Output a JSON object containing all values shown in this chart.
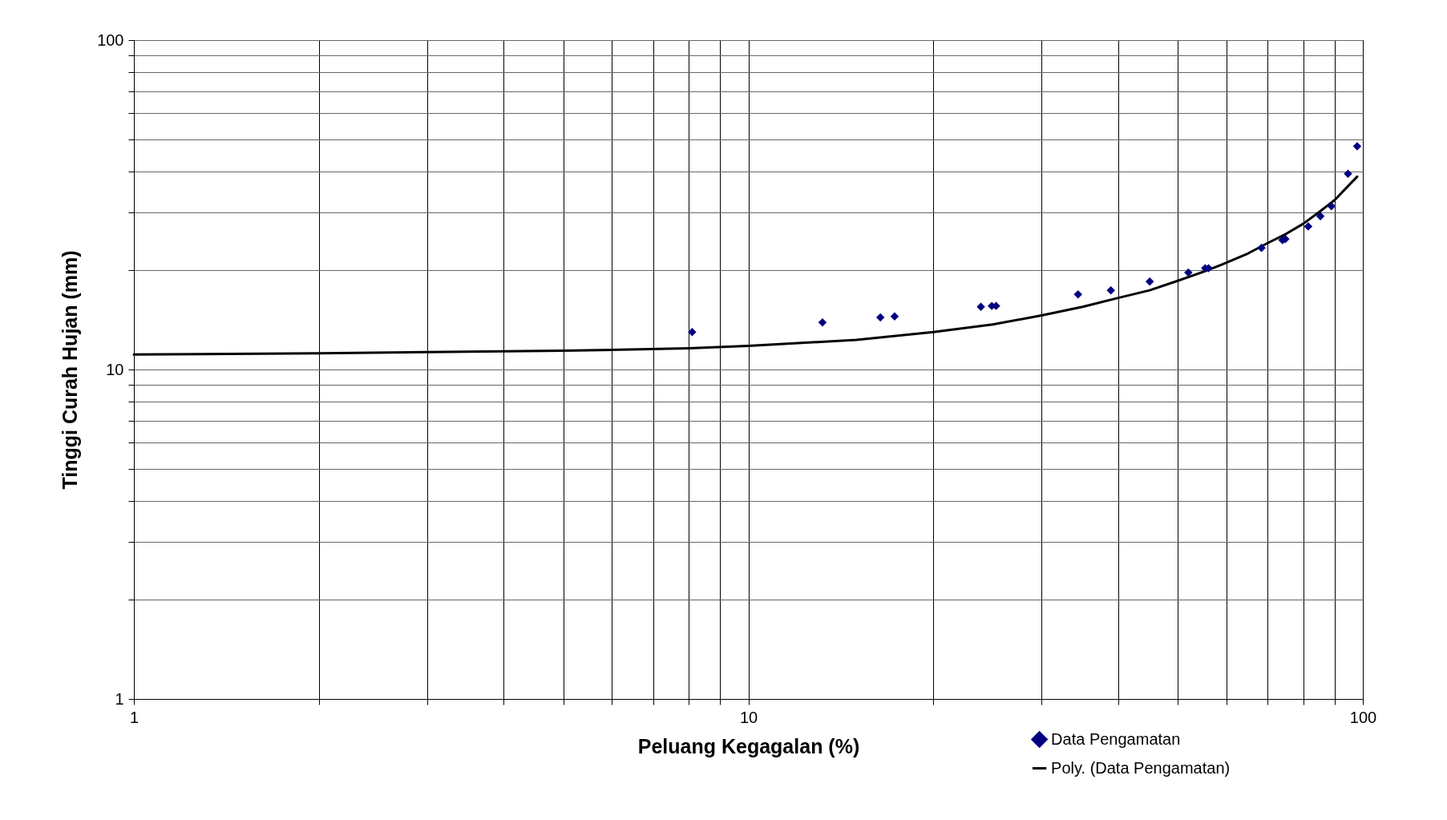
{
  "chart_data": {
    "type": "scatter",
    "xlabel": "Peluang Kegagalan (%)",
    "ylabel": "Tinggi Curah Hujan (mm)",
    "log": "xy",
    "grid": true,
    "legend": "bottom right",
    "xlim": [
      1,
      100
    ],
    "ylim": [
      1,
      100
    ],
    "xticks": [
      1,
      {
        "value": 2,
        "label": null
      },
      {
        "value": 3,
        "label": null
      },
      {
        "value": 4,
        "label": null
      },
      {
        "value": 5,
        "label": null
      },
      {
        "value": 6,
        "label": null
      },
      {
        "value": 7,
        "label": null
      },
      {
        "value": 8,
        "label": null
      },
      {
        "value": 9,
        "label": null
      },
      10,
      {
        "value": 20,
        "label": null
      },
      {
        "value": 30,
        "label": null
      },
      {
        "value": 40,
        "label": null
      },
      {
        "value": 50,
        "label": null
      },
      {
        "value": 60,
        "label": null
      },
      {
        "value": 70,
        "label": null
      },
      {
        "value": 80,
        "label": null
      },
      {
        "value": 90,
        "label": null
      },
      100
    ],
    "yticks": [
      1,
      {
        "value": 2,
        "label": null
      },
      {
        "value": 3,
        "label": null
      },
      {
        "value": 4,
        "label": null
      },
      {
        "value": 5,
        "label": null
      },
      {
        "value": 6,
        "label": null
      },
      {
        "value": 7,
        "label": null
      },
      {
        "value": 8,
        "label": null
      },
      {
        "value": 9,
        "label": null
      },
      10,
      {
        "value": 20,
        "label": null
      },
      {
        "value": 30,
        "label": null
      },
      {
        "value": 40,
        "label": null
      },
      {
        "value": 50,
        "label": null
      },
      {
        "value": 60,
        "label": null
      },
      {
        "value": 70,
        "label": null
      },
      {
        "value": 80,
        "label": null
      },
      {
        "value": 90,
        "label": null
      },
      100
    ],
    "series": [
      {
        "name": "Data Pengamatan",
        "color": "#000080",
        "marker": "diamond",
        "x": [
          8.1,
          13.2,
          16.4,
          17.3,
          23.9,
          24.9,
          25.3,
          34.4,
          38.9,
          45.0,
          52.0,
          55.4,
          56.1,
          68.4,
          74.0,
          74.8,
          81.5,
          85.3,
          88.9,
          94.6,
          97.9
        ],
        "values": [
          13.0,
          13.9,
          14.4,
          14.5,
          15.5,
          15.6,
          15.6,
          16.9,
          17.4,
          18.5,
          19.7,
          20.3,
          20.3,
          23.4,
          24.7,
          24.9,
          27.2,
          29.2,
          31.3,
          39.3,
          47.6
        ]
      },
      {
        "name": "Poly. (Data Pengamatan)",
        "type": "line",
        "color": "#000000",
        "marker": "none",
        "x": [
          1,
          2,
          3,
          5,
          8,
          10,
          15,
          20,
          25,
          30,
          35,
          40,
          45,
          50,
          55,
          60,
          65,
          70,
          75,
          80,
          85,
          90,
          97.9
        ],
        "values": [
          11.1,
          11.2,
          11.3,
          11.4,
          11.6,
          11.8,
          12.3,
          13.0,
          13.7,
          14.6,
          15.5,
          16.5,
          17.4,
          18.6,
          19.8,
          21.1,
          22.5,
          24.2,
          25.8,
          27.7,
          30.1,
          32.7,
          38.5
        ]
      }
    ]
  }
}
